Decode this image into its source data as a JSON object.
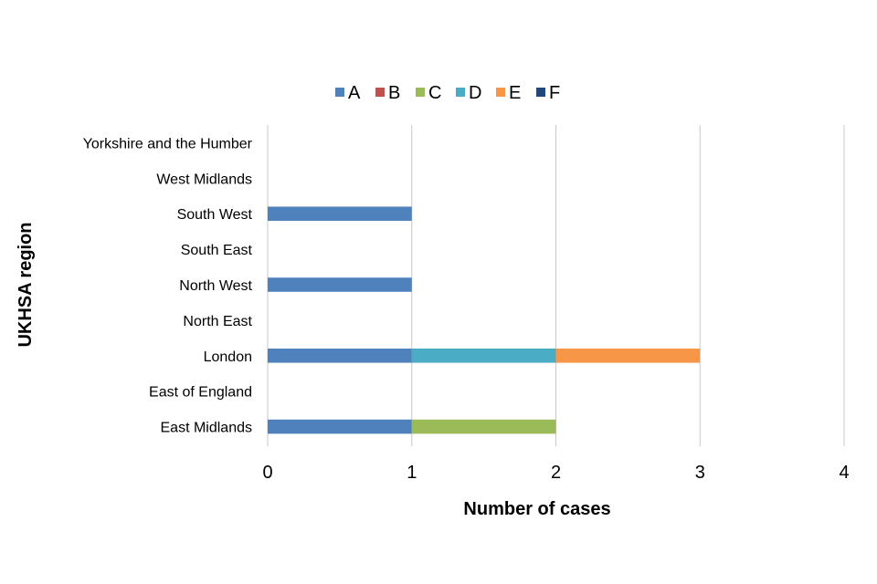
{
  "chart_data": {
    "type": "bar",
    "orientation": "horizontal",
    "stacked": true,
    "title": "",
    "xlabel": "Number of cases",
    "ylabel": "UKHSA region",
    "xlim": [
      0,
      4
    ],
    "x_ticks": [
      0,
      1,
      2,
      3,
      4
    ],
    "grid": true,
    "legend_position": "top",
    "categories": [
      "East Midlands",
      "East of England",
      "London",
      "North East",
      "North West",
      "South East",
      "South West",
      "West Midlands",
      "Yorkshire and the Humber"
    ],
    "series": [
      {
        "name": "A",
        "color": "#4F81BD",
        "values": [
          1,
          0,
          1,
          0,
          1,
          0,
          1,
          0,
          0
        ]
      },
      {
        "name": "B",
        "color": "#C0504D",
        "values": [
          0,
          0,
          0,
          0,
          0,
          0,
          0,
          0,
          0
        ]
      },
      {
        "name": "C",
        "color": "#9BBB59",
        "values": [
          1,
          0,
          0,
          0,
          0,
          0,
          0,
          0,
          0
        ]
      },
      {
        "name": "D",
        "color": "#4BACC6",
        "values": [
          0,
          0,
          1,
          0,
          0,
          0,
          0,
          0,
          0
        ]
      },
      {
        "name": "E",
        "color": "#F79646",
        "values": [
          0,
          0,
          1,
          0,
          0,
          0,
          0,
          0,
          0
        ]
      },
      {
        "name": "F",
        "color": "#1F497D",
        "values": [
          0,
          0,
          0,
          0,
          0,
          0,
          0,
          0,
          0
        ]
      }
    ]
  }
}
